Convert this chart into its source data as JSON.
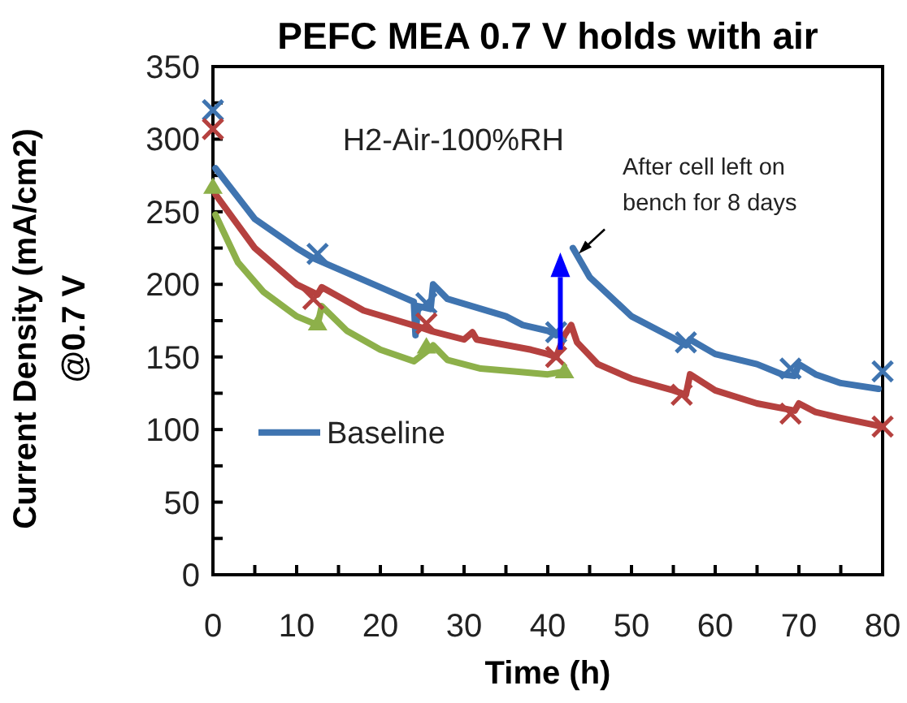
{
  "chart_data": {
    "type": "line",
    "title": "PEFC MEA 0.7 V holds with air",
    "xlabel": "Time (h)",
    "ylabel": "Current Density (mA/cm2)\n@0.7 V",
    "annotations": [
      "H2-Air-100%RH",
      {
        "text": "After cell left on bench for 8 days",
        "x": 43.5,
        "y": 220
      }
    ],
    "xlim": [
      0,
      80
    ],
    "ylim": [
      0,
      350
    ],
    "xticks": [
      0,
      {
        "value": 5,
        "label": null
      },
      10,
      {
        "value": 15,
        "label": null
      },
      20,
      {
        "value": 25,
        "label": null
      },
      30,
      {
        "value": 35,
        "label": null
      },
      40,
      {
        "value": 45,
        "label": null
      },
      50,
      {
        "value": 55,
        "label": null
      },
      60,
      {
        "value": 65,
        "label": null
      },
      70,
      {
        "value": 75,
        "label": null
      },
      80
    ],
    "yticks": [
      0,
      {
        "value": 25,
        "label": null
      },
      50,
      {
        "value": 75,
        "label": null
      },
      100,
      {
        "value": 125,
        "label": null
      },
      150,
      {
        "value": 175,
        "label": null
      },
      200,
      {
        "value": 225,
        "label": null
      },
      250,
      {
        "value": 275,
        "label": null
      },
      300,
      {
        "value": 325,
        "label": null
      },
      350
    ],
    "grid": false,
    "legend": "left",
    "line_style": "solid",
    "series": [
      {
        "name": "Baseline",
        "color": "#3f74b0",
        "x": [
          0.3,
          5,
          10,
          12,
          20,
          24,
          24.2,
          24.5,
          26,
          26.3,
          28,
          35,
          37,
          40,
          41,
          42,
          43,
          45,
          50,
          55,
          56.5,
          57,
          60,
          65,
          68,
          69.5,
          70,
          72,
          75,
          79.5
        ],
        "values": [
          280,
          245,
          225,
          218,
          198,
          188,
          165,
          185,
          183,
          200,
          190,
          178,
          172,
          168,
          165,
          null,
          225,
          205,
          178,
          163,
          158,
          162,
          152,
          145,
          138,
          137,
          145,
          138,
          132,
          128
        ]
      },
      {
        "color": "#b5413f",
        "x": [
          0.3,
          5,
          10,
          12.5,
          13,
          18,
          25,
          26,
          30,
          31,
          31.5,
          38,
          40,
          41,
          42,
          42.8,
          43.5,
          46,
          50,
          55,
          56.5,
          57,
          60,
          65,
          69.5,
          70,
          72,
          75,
          80
        ],
        "values": [
          262,
          225,
          200,
          193,
          198,
          182,
          170,
          168,
          162,
          167,
          162,
          155,
          152,
          150,
          165,
          172,
          160,
          145,
          135,
          127,
          124,
          138,
          127,
          118,
          113,
          118,
          112,
          108,
          102
        ]
      },
      {
        "color": "#8db04a",
        "x": [
          0.3,
          3,
          6,
          10,
          12.5,
          13,
          16,
          20,
          24,
          25.8,
          26.3,
          28,
          32,
          36,
          40,
          42
        ],
        "values": [
          248,
          215,
          195,
          178,
          172,
          185,
          168,
          155,
          147,
          155,
          158,
          148,
          142,
          140,
          138,
          140
        ]
      },
      {
        "color": "#3f74b0",
        "type": "scatter",
        "marker": "cross",
        "x": [
          0,
          12.5,
          25.5,
          41,
          56.5,
          69,
          80
        ],
        "values": [
          320,
          221,
          187,
          167,
          160,
          142,
          140
        ]
      },
      {
        "color": "#b5413f",
        "type": "scatter",
        "marker": "cross",
        "x": [
          0,
          12,
          25.5,
          41,
          56,
          69,
          80
        ],
        "values": [
          307,
          190,
          173,
          150,
          124,
          111,
          102
        ]
      },
      {
        "color": "#8db04a",
        "type": "scatter",
        "marker": "triangle",
        "x": [
          0,
          12.5,
          25.5,
          42
        ],
        "values": [
          267,
          173,
          157,
          140
        ]
      }
    ]
  }
}
